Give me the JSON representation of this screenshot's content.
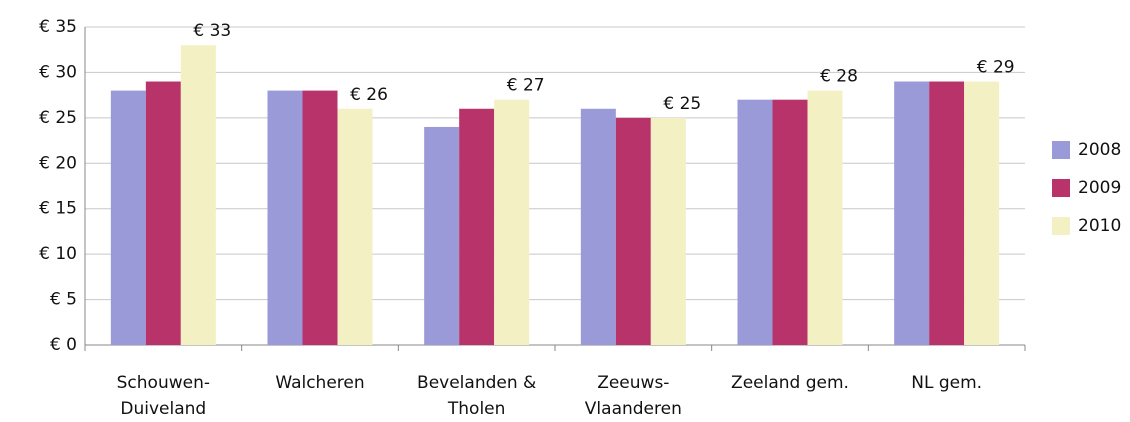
{
  "chart_data": {
    "type": "bar",
    "categories": [
      "Schouwen-\nDuiveland",
      "Walcheren",
      "Bevelanden &\nTholen",
      "Zeeuws-\nVlaanderen",
      "Zeeland gem.",
      "NL gem."
    ],
    "series": [
      {
        "name": "2008",
        "color": "#9a9ad8",
        "values": [
          28,
          28,
          24,
          26,
          27,
          29
        ]
      },
      {
        "name": "2009",
        "color": "#b8336a",
        "values": [
          29,
          28,
          26,
          25,
          27,
          29
        ]
      },
      {
        "name": "2010",
        "color": "#f3f1c4",
        "values": [
          33,
          26,
          27,
          25,
          28,
          29
        ],
        "value_labels": [
          "€ 33",
          "€ 26",
          "€ 27",
          "€ 25",
          "€ 28",
          "€ 29"
        ]
      }
    ],
    "ylim": [
      0,
      35
    ],
    "yticks": [
      {
        "value": 0,
        "label": "€ 0"
      },
      {
        "value": 5,
        "label": "€ 5"
      },
      {
        "value": 10,
        "label": "€ 10"
      },
      {
        "value": 15,
        "label": "€ 15"
      },
      {
        "value": 20,
        "label": "€ 20"
      },
      {
        "value": 25,
        "label": "€ 25"
      },
      {
        "value": 30,
        "label": "€ 30"
      },
      {
        "value": 35,
        "label": "€ 35"
      }
    ],
    "grid": true,
    "legend": "right"
  }
}
